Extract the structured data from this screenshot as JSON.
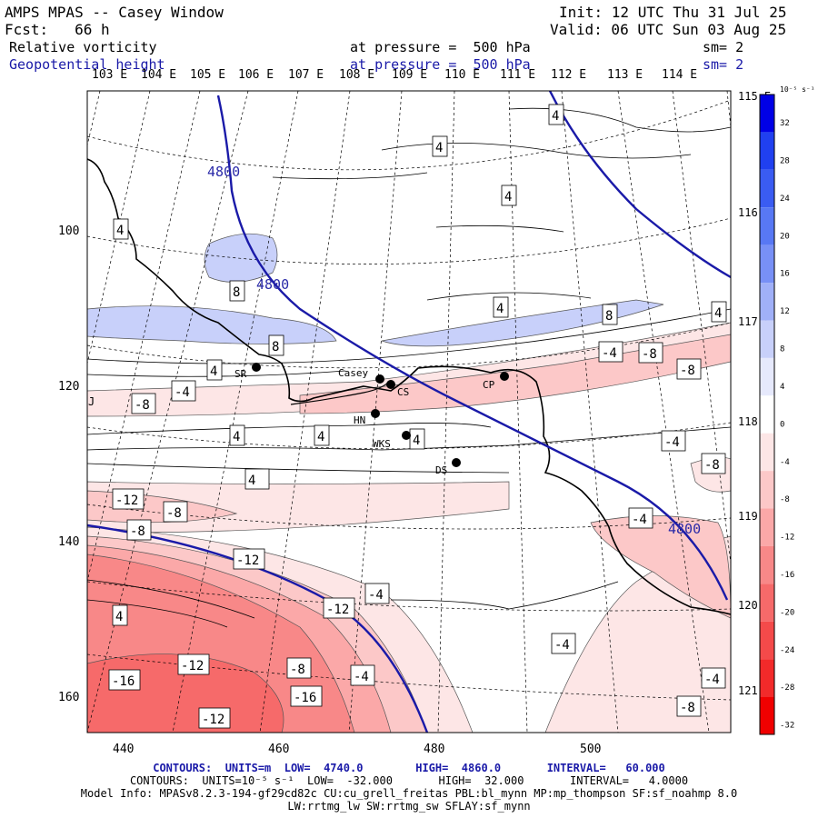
{
  "header": {
    "model": "AMPS MPAS -- Casey Window",
    "init": "Init: 12 UTC Thu 31 Jul 25",
    "fcst": "Fcst:   66 h",
    "valid": "Valid: 06 UTC Sun 03 Aug 25",
    "field1": "Relative vorticity",
    "field1_level": "at pressure =  500 hPa",
    "field1_sm": "sm= 2",
    "field2": "Geopotential height",
    "field2_level": "at pressure =  500 hPa",
    "field2_sm": "sm= 2"
  },
  "top_lon_labels": [
    "103 E",
    "104 E",
    "105 E",
    "106 E",
    "107 E",
    "108 E",
    "109 E",
    "110 E",
    "111 E",
    "112 E",
    "113 E",
    "114 E"
  ],
  "right_lon_labels": [
    "115 E",
    "116 E",
    "117 E",
    "118 E",
    "119 E",
    "120 E",
    "121 E"
  ],
  "x_ticks": [
    "440",
    "460",
    "480",
    "500"
  ],
  "y_ticks": [
    "100",
    "120",
    "140",
    "160"
  ],
  "colorbar": {
    "unit": "10⁻⁵ s⁻¹",
    "labels": [
      "32",
      "28",
      "24",
      "20",
      "16",
      "12",
      "8",
      "4",
      "0",
      "-4",
      "-8",
      "-12",
      "-16",
      "-20",
      "-24",
      "-28",
      "-32"
    ],
    "colors": [
      "#0000e6",
      "#2040f0",
      "#3a5cf2",
      "#5878f4",
      "#7890f6",
      "#a0b0f8",
      "#c8d0fa",
      "#e6e9fc",
      "#ffffff",
      "#fde6e6",
      "#fcc8c8",
      "#fba8a8",
      "#f88888",
      "#f66a6a",
      "#f44a4a",
      "#f22a2a",
      "#f00000"
    ]
  },
  "stations": [
    {
      "name": "SR"
    },
    {
      "name": "Casey"
    },
    {
      "name": "CS"
    },
    {
      "name": "CP"
    },
    {
      "name": "HN"
    },
    {
      "name": "WKS"
    },
    {
      "name": "DS"
    }
  ],
  "height_labels": [
    "4800",
    "4800",
    "4800"
  ],
  "vort_labels": [
    "4",
    "4",
    "4",
    "4",
    "8",
    "8",
    "4",
    "4",
    "8",
    "4",
    "-4",
    "-8",
    "-8",
    "-4",
    "-8",
    "4",
    "4",
    "4",
    "-4",
    "4",
    "-8",
    "-4",
    "-12",
    "-8",
    "-8",
    "-12",
    "-4",
    "-12",
    "-4",
    "-8",
    "4",
    "-4",
    "-12",
    "-8",
    "-16",
    "-16",
    "-12",
    "-4",
    "-4",
    "-8",
    "4",
    "J"
  ],
  "footer": {
    "line1": "CONTOURS:  UNITS=m  LOW=  4740.0        HIGH=  4860.0       INTERVAL=   60.000",
    "line2": "CONTOURS:  UNITS=10⁻⁵ s⁻¹  LOW=  -32.000       HIGH=  32.000       INTERVAL=   4.0000",
    "line3": "Model Info: MPASv8.2.3-194-gf29cd82c CU:cu_grell_freitas PBL:bl_mynn MP:mp_thompson SF:sf_noahmp 8.0",
    "line4": "LW:rrtmg_lw SW:rrtmg_sw SFLAY:sf_mynn"
  }
}
